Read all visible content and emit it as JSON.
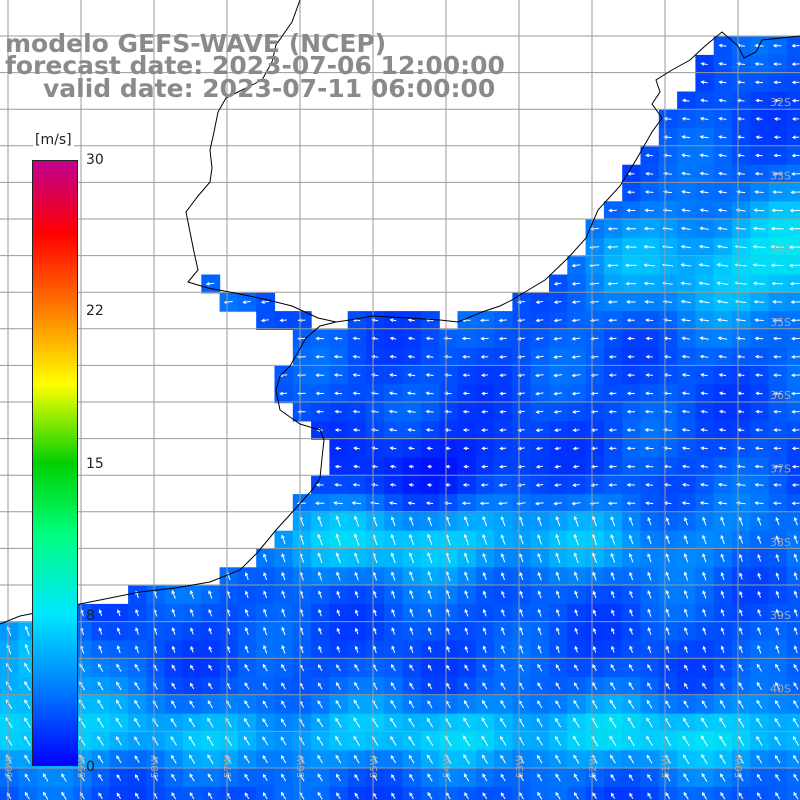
{
  "header": {
    "line1": "modelo GEFS-WAVE (NCEP)",
    "line2": "forecast date: 2023-07-06 12:00:00",
    "line3": "valid date: 2023-07-11 06:00:00"
  },
  "colorbar": {
    "unit": "[m/s]",
    "ticks": [
      "30",
      "22",
      "15",
      "8",
      "0"
    ],
    "tick_values": [
      30,
      22,
      15,
      8,
      0
    ],
    "min": 0,
    "max": 30,
    "colors": [
      "#0000ff",
      "#0080ff",
      "#00e8ff",
      "#00ff80",
      "#00d000",
      "#ffff00",
      "#ff8000",
      "#ff0000",
      "#c00090"
    ]
  },
  "lat_labels": [
    "32S",
    "33S",
    "34S",
    "35S",
    "36S",
    "37S",
    "38S",
    "39S",
    "40S"
  ],
  "lon_labels": [
    "60W",
    "59W",
    "58W",
    "57W",
    "56W",
    "55W",
    "54W",
    "53W",
    "52W",
    "51W",
    "50W"
  ],
  "colors": {
    "land": "#ffffff",
    "coast": "#000000",
    "grid": "#9a9a9a",
    "title_text": "#8a8a8a"
  }
}
